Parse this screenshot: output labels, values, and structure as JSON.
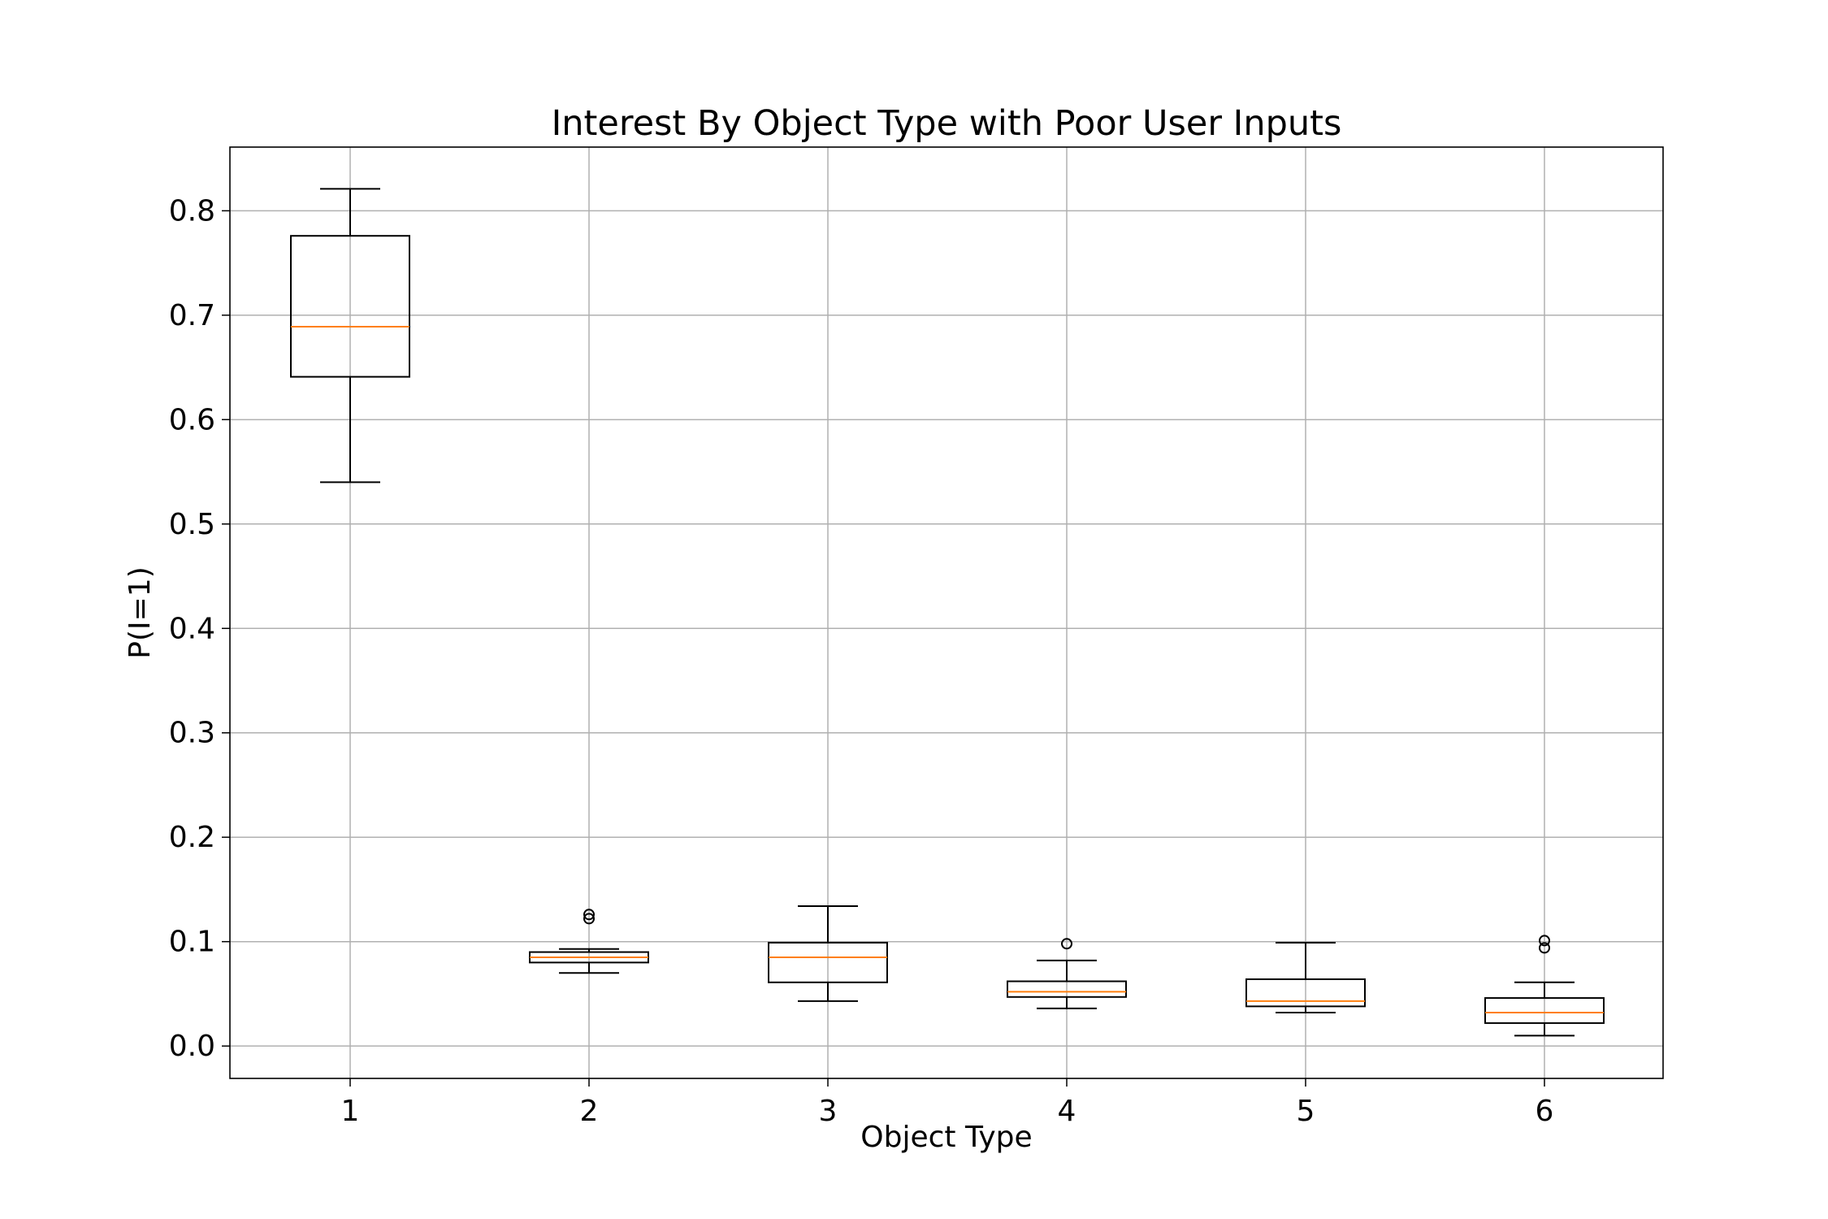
{
  "chart_data": {
    "type": "box",
    "title": "Interest By Object Type with Poor User Inputs",
    "xlabel": "Object Type",
    "ylabel": "P(I=1)",
    "categories": [
      "1",
      "2",
      "3",
      "4",
      "5",
      "6"
    ],
    "ylim": [
      -0.031,
      0.861
    ],
    "yticks": [
      "0.0",
      "0.1",
      "0.2",
      "0.3",
      "0.4",
      "0.5",
      "0.6",
      "0.7",
      "0.8"
    ],
    "grid": true,
    "colors": {
      "box": "#000000",
      "median": "#ff7f0e",
      "grid": "#b0b0b0"
    },
    "boxes": [
      {
        "category": "1",
        "whisker_low": 0.54,
        "q1": 0.641,
        "median": 0.689,
        "q3": 0.776,
        "whisker_high": 0.821,
        "outliers": []
      },
      {
        "category": "2",
        "whisker_low": 0.07,
        "q1": 0.08,
        "median": 0.085,
        "q3": 0.09,
        "whisker_high": 0.093,
        "outliers": [
          0.122,
          0.126
        ]
      },
      {
        "category": "3",
        "whisker_low": 0.043,
        "q1": 0.061,
        "median": 0.085,
        "q3": 0.099,
        "whisker_high": 0.134,
        "outliers": []
      },
      {
        "category": "4",
        "whisker_low": 0.036,
        "q1": 0.047,
        "median": 0.052,
        "q3": 0.062,
        "whisker_high": 0.082,
        "outliers": [
          0.098
        ]
      },
      {
        "category": "5",
        "whisker_low": 0.032,
        "q1": 0.038,
        "median": 0.043,
        "q3": 0.064,
        "whisker_high": 0.099,
        "outliers": []
      },
      {
        "category": "6",
        "whisker_low": 0.01,
        "q1": 0.022,
        "median": 0.032,
        "q3": 0.046,
        "whisker_high": 0.061,
        "outliers": [
          0.094,
          0.101
        ]
      }
    ]
  }
}
